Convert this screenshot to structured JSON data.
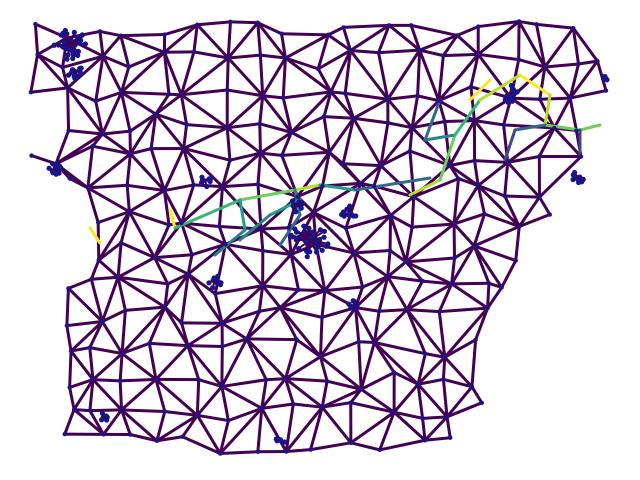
{
  "graph": {
    "edge_color": "#440154",
    "node_color": "#16168a",
    "highlight_colors": [
      "#fde725",
      "#b5de2b",
      "#6ece58",
      "#35b779",
      "#1f9e89",
      "#26828e",
      "#31688e",
      "#3e4989"
    ]
  }
}
